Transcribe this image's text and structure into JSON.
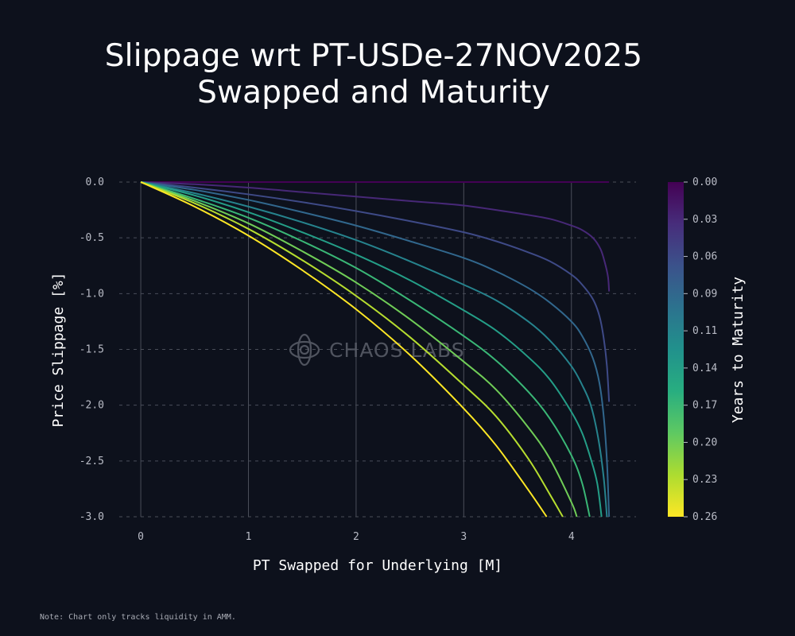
{
  "title_lines": [
    "Slippage wrt PT-USDe-27NOV2025",
    "Swapped and Maturity"
  ],
  "note": "Note: Chart only tracks liquidity in AMM.",
  "watermark": "CHAOS LABS",
  "colors": {
    "background": "#0d111c",
    "grid": "#4a4e59",
    "colormap": [
      "#440154",
      "#472d7b",
      "#3b528b",
      "#2c728e",
      "#21918c",
      "#28ae80",
      "#5ec962",
      "#addc30",
      "#fde725"
    ]
  },
  "chart_data": {
    "type": "line",
    "xlabel": "PT Swapped for Underlying [M]",
    "ylabel": "Price Slippage [%]",
    "xlim": [
      -0.2,
      4.6
    ],
    "ylim": [
      -3.0,
      0.0
    ],
    "x_ticks": [
      0,
      1,
      2,
      3,
      4
    ],
    "y_ticks": [
      "0.0",
      "-0.5",
      "-1.0",
      "-1.5",
      "-2.0",
      "-2.5",
      "-3.0"
    ],
    "grid": true,
    "colorbar": {
      "label": "Years to Maturity",
      "range": [
        0.0,
        0.26
      ],
      "ticks": [
        "0.00",
        "0.03",
        "0.06",
        "0.09",
        "0.11",
        "0.14",
        "0.17",
        "0.20",
        "0.23",
        "0.26"
      ],
      "orientation": "inverted"
    },
    "series": [
      {
        "maturity": 0.0,
        "x": [
          0,
          1,
          2,
          3,
          4,
          4.35
        ],
        "y": [
          0,
          0,
          0,
          0,
          0,
          0
        ]
      },
      {
        "maturity": 0.0289,
        "x": [
          0,
          0.5,
          1,
          1.5,
          2,
          2.5,
          3,
          3.5,
          3.8,
          4,
          4.1,
          4.2,
          4.27,
          4.31,
          4.34,
          4.35
        ],
        "y": [
          0,
          -0.02,
          -0.05,
          -0.09,
          -0.13,
          -0.17,
          -0.21,
          -0.28,
          -0.33,
          -0.39,
          -0.43,
          -0.5,
          -0.6,
          -0.72,
          -0.85,
          -0.98
        ]
      },
      {
        "maturity": 0.0578,
        "x": [
          0,
          0.5,
          1,
          1.5,
          2,
          2.5,
          3,
          3.3,
          3.6,
          3.8,
          4,
          4.1,
          4.2,
          4.26,
          4.3,
          4.33,
          4.35
        ],
        "y": [
          0,
          -0.05,
          -0.11,
          -0.18,
          -0.26,
          -0.35,
          -0.45,
          -0.53,
          -0.63,
          -0.71,
          -0.83,
          -0.92,
          -1.05,
          -1.2,
          -1.4,
          -1.65,
          -1.97
        ]
      },
      {
        "maturity": 0.0867,
        "x": [
          0,
          0.5,
          1,
          1.5,
          2,
          2.5,
          3,
          3.3,
          3.6,
          3.8,
          4,
          4.1,
          4.2,
          4.26,
          4.3,
          4.33,
          4.35
        ],
        "y": [
          0,
          -0.07,
          -0.16,
          -0.27,
          -0.39,
          -0.53,
          -0.68,
          -0.8,
          -0.95,
          -1.08,
          -1.25,
          -1.38,
          -1.58,
          -1.8,
          -2.1,
          -2.5,
          -3.0
        ]
      },
      {
        "maturity": 0.1156,
        "x": [
          0,
          0.5,
          1,
          1.5,
          2,
          2.5,
          3,
          3.3,
          3.6,
          3.8,
          4,
          4.1,
          4.18,
          4.25,
          4.3,
          4.33
        ],
        "y": [
          0,
          -0.1,
          -0.22,
          -0.36,
          -0.52,
          -0.71,
          -0.92,
          -1.06,
          -1.25,
          -1.42,
          -1.65,
          -1.82,
          -2.0,
          -2.3,
          -2.65,
          -3.0
        ]
      },
      {
        "maturity": 0.1444,
        "x": [
          0,
          0.5,
          1,
          1.5,
          2,
          2.5,
          3,
          3.3,
          3.6,
          3.8,
          4,
          4.1,
          4.18,
          4.24,
          4.28
        ],
        "y": [
          0,
          -0.12,
          -0.27,
          -0.45,
          -0.65,
          -0.88,
          -1.15,
          -1.33,
          -1.57,
          -1.77,
          -2.06,
          -2.25,
          -2.48,
          -2.7,
          -3.0
        ]
      },
      {
        "maturity": 0.1733,
        "x": [
          0,
          0.5,
          1,
          1.5,
          2,
          2.5,
          3,
          3.3,
          3.6,
          3.8,
          4,
          4.1,
          4.17
        ],
        "y": [
          0,
          -0.15,
          -0.32,
          -0.53,
          -0.77,
          -1.06,
          -1.38,
          -1.6,
          -1.88,
          -2.12,
          -2.45,
          -2.7,
          -3.0
        ]
      },
      {
        "maturity": 0.2022,
        "x": [
          0,
          0.5,
          1,
          1.5,
          2,
          2.5,
          3,
          3.3,
          3.6,
          3.8,
          4,
          4.05
        ],
        "y": [
          0,
          -0.17,
          -0.37,
          -0.62,
          -0.9,
          -1.23,
          -1.61,
          -1.86,
          -2.2,
          -2.48,
          -2.87,
          -3.0
        ]
      },
      {
        "maturity": 0.2311,
        "x": [
          0,
          0.5,
          1,
          1.5,
          2,
          2.5,
          3,
          3.3,
          3.6,
          3.8,
          3.92
        ],
        "y": [
          0,
          -0.19,
          -0.42,
          -0.7,
          -1.02,
          -1.39,
          -1.82,
          -2.1,
          -2.48,
          -2.8,
          -3.0
        ]
      },
      {
        "maturity": 0.26,
        "x": [
          0,
          0.5,
          1,
          1.5,
          2,
          2.5,
          3,
          3.3,
          3.6,
          3.77
        ],
        "y": [
          0,
          -0.22,
          -0.48,
          -0.79,
          -1.14,
          -1.55,
          -2.03,
          -2.36,
          -2.76,
          -3.0
        ]
      }
    ]
  }
}
